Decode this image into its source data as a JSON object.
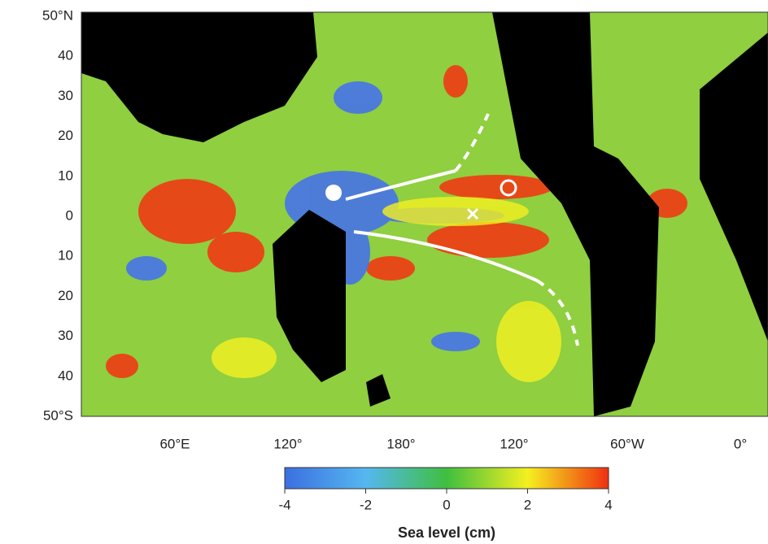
{
  "map": {
    "lat_labels": [
      "50°N",
      "40",
      "30",
      "20",
      "10",
      "0",
      "10",
      "20",
      "30",
      "40",
      "50°S"
    ],
    "lon_labels": [
      "60°E",
      "120°",
      "180°",
      "120°",
      "60°W",
      "0°"
    ]
  },
  "colorbar": {
    "lim": [
      -4,
      4
    ],
    "ticks": [
      -4,
      -2,
      0,
      2,
      4
    ],
    "label": "Sea level (cm)"
  }
}
